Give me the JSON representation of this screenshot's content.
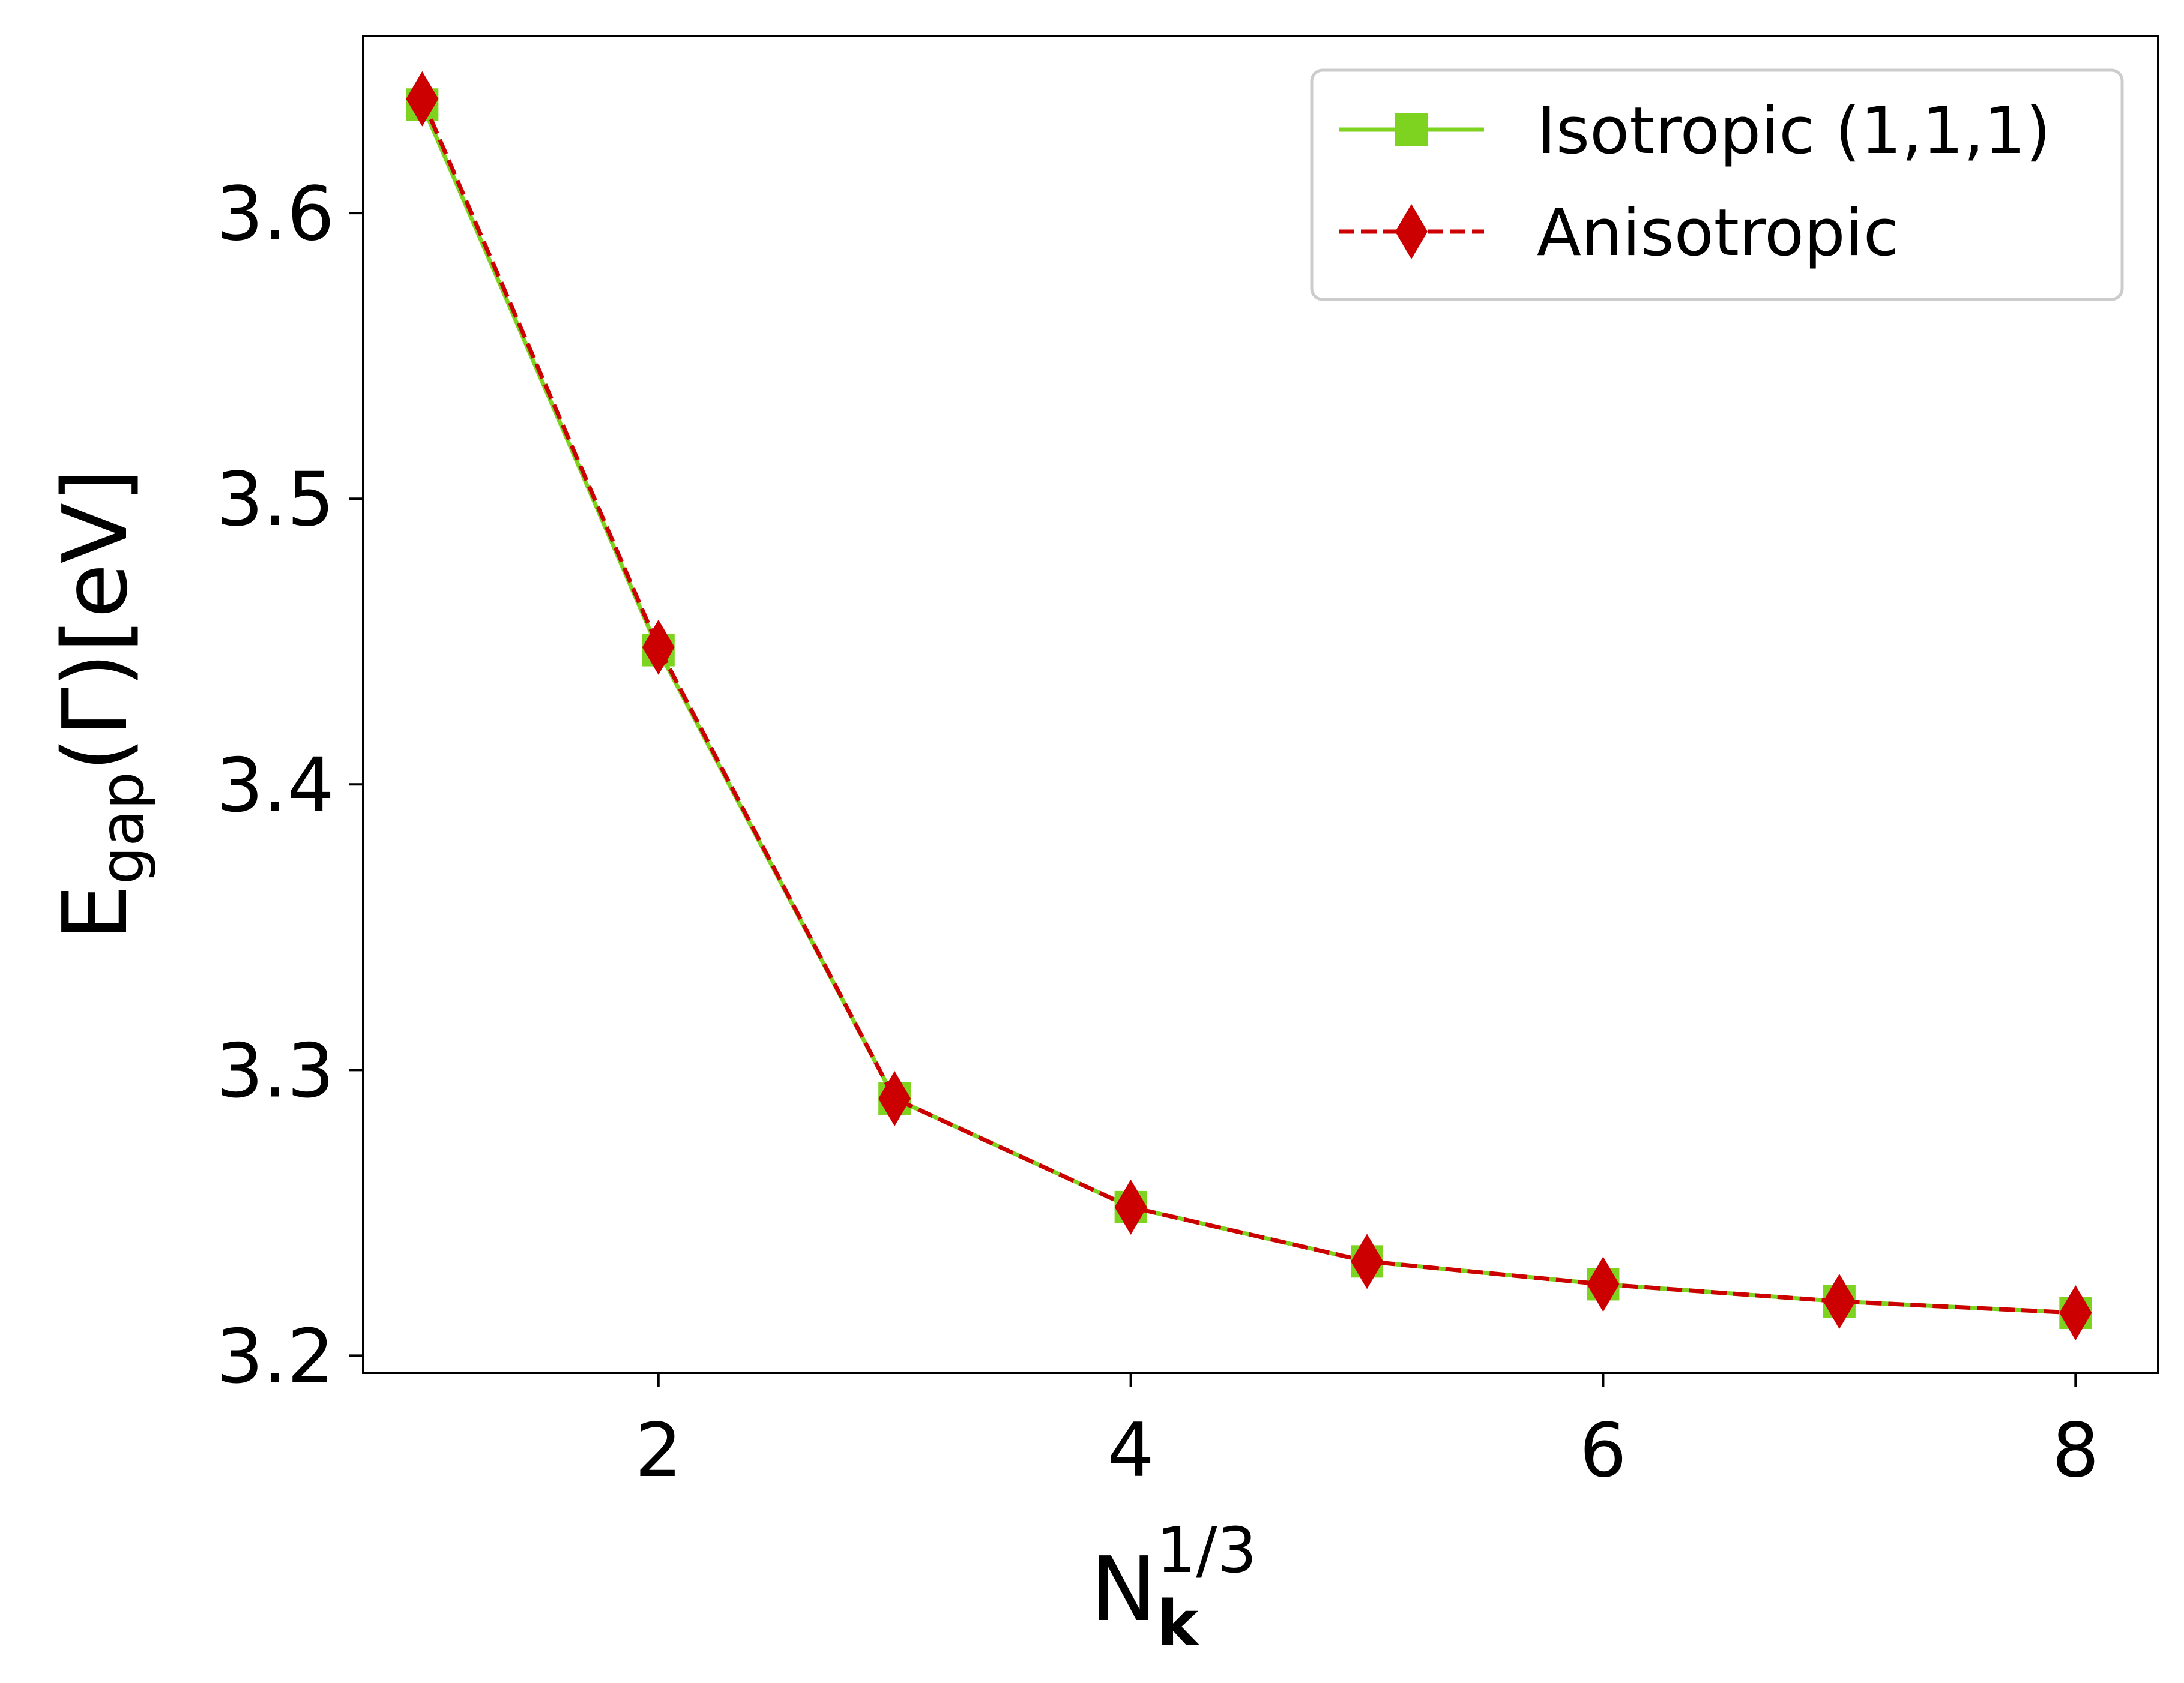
{
  "chart_data": {
    "type": "line",
    "xlabel": {
      "base": "N",
      "subscript": "k",
      "superscript": "1/3"
    },
    "ylabel": {
      "base": "E",
      "subscript": "gap",
      "rest": "(Γ)[eV]"
    },
    "xlim": [
      0.75,
      8.35
    ],
    "ylim": [
      3.194,
      3.662
    ],
    "xticks": [
      2,
      4,
      6,
      8
    ],
    "xtick_labels": [
      "2",
      "4",
      "6",
      "8"
    ],
    "yticks": [
      3.2,
      3.3,
      3.4,
      3.5,
      3.6
    ],
    "ytick_labels": [
      "3.2",
      "3.3",
      "3.4",
      "3.5",
      "3.6"
    ],
    "grid": false,
    "legend_position": "top-right",
    "x": [
      1,
      2,
      3,
      4,
      5,
      6,
      7,
      8
    ],
    "series": [
      {
        "name": "Isotropic (1,1,1)",
        "color": "#7ed321",
        "line_style": "solid",
        "marker": "square",
        "values": [
          3.638,
          3.447,
          3.29,
          3.252,
          3.233,
          3.225,
          3.219,
          3.215
        ]
      },
      {
        "name": "Anisotropic",
        "color": "#cc0000",
        "line_style": "dashed",
        "marker": "thin-diamond",
        "values": [
          3.64,
          3.448,
          3.29,
          3.252,
          3.233,
          3.225,
          3.219,
          3.215
        ]
      }
    ]
  }
}
